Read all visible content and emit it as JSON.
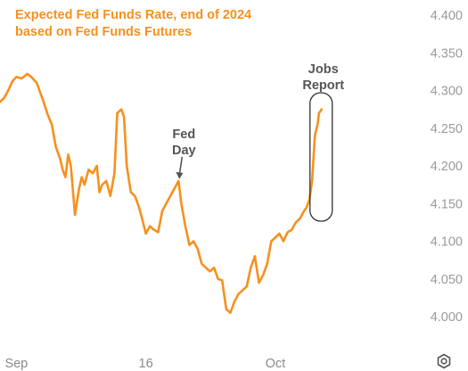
{
  "chart_data": {
    "type": "line",
    "title": "Expected Fed Funds Rate, end of 2024",
    "subtitle": "based on Fed Funds Futures",
    "ylim": [
      3.97,
      4.41
    ],
    "yticks": [
      "4.400",
      "4.350",
      "4.300",
      "4.250",
      "4.200",
      "4.150",
      "4.100",
      "4.050",
      "4.000"
    ],
    "xlim": [
      0,
      29.3
    ],
    "xticks": [
      {
        "x": 1.2,
        "label": "Sep"
      },
      {
        "x": 10.7,
        "label": "16"
      },
      {
        "x": 20.2,
        "label": "Oct"
      }
    ],
    "grid": false,
    "series": [
      {
        "color": "#f7901e",
        "points": [
          [
            0.0,
            4.285
          ],
          [
            0.3,
            4.29
          ],
          [
            0.6,
            4.3
          ],
          [
            0.9,
            4.312
          ],
          [
            1.2,
            4.318
          ],
          [
            1.6,
            4.316
          ],
          [
            2.0,
            4.322
          ],
          [
            2.3,
            4.318
          ],
          [
            2.7,
            4.31
          ],
          [
            2.9,
            4.3
          ],
          [
            3.2,
            4.285
          ],
          [
            3.5,
            4.268
          ],
          [
            3.8,
            4.255
          ],
          [
            4.1,
            4.225
          ],
          [
            4.4,
            4.21
          ],
          [
            4.6,
            4.195
          ],
          [
            4.8,
            4.185
          ],
          [
            5.0,
            4.215
          ],
          [
            5.2,
            4.2
          ],
          [
            5.5,
            4.135
          ],
          [
            5.8,
            4.17
          ],
          [
            6.0,
            4.185
          ],
          [
            6.2,
            4.175
          ],
          [
            6.5,
            4.195
          ],
          [
            6.8,
            4.19
          ],
          [
            7.1,
            4.2
          ],
          [
            7.3,
            4.165
          ],
          [
            7.5,
            4.175
          ],
          [
            7.8,
            4.18
          ],
          [
            8.1,
            4.16
          ],
          [
            8.4,
            4.19
          ],
          [
            8.6,
            4.27
          ],
          [
            8.9,
            4.275
          ],
          [
            9.1,
            4.265
          ],
          [
            9.3,
            4.2
          ],
          [
            9.6,
            4.165
          ],
          [
            9.9,
            4.16
          ],
          [
            10.2,
            4.145
          ],
          [
            10.5,
            4.125
          ],
          [
            10.7,
            4.11
          ],
          [
            11.0,
            4.12
          ],
          [
            11.3,
            4.115
          ],
          [
            11.6,
            4.112
          ],
          [
            11.9,
            4.14
          ],
          [
            12.2,
            4.15
          ],
          [
            12.5,
            4.16
          ],
          [
            12.8,
            4.17
          ],
          [
            13.1,
            4.18
          ],
          [
            13.3,
            4.15
          ],
          [
            13.6,
            4.12
          ],
          [
            13.9,
            4.095
          ],
          [
            14.2,
            4.1
          ],
          [
            14.5,
            4.09
          ],
          [
            14.8,
            4.07
          ],
          [
            15.1,
            4.065
          ],
          [
            15.4,
            4.06
          ],
          [
            15.7,
            4.065
          ],
          [
            16.0,
            4.05
          ],
          [
            16.3,
            4.048
          ],
          [
            16.6,
            4.01
          ],
          [
            16.9,
            4.005
          ],
          [
            17.2,
            4.02
          ],
          [
            17.5,
            4.03
          ],
          [
            17.8,
            4.035
          ],
          [
            18.1,
            4.04
          ],
          [
            18.4,
            4.065
          ],
          [
            18.7,
            4.08
          ],
          [
            19.0,
            4.045
          ],
          [
            19.3,
            4.055
          ],
          [
            19.6,
            4.07
          ],
          [
            19.9,
            4.1
          ],
          [
            20.2,
            4.105
          ],
          [
            20.5,
            4.11
          ],
          [
            20.8,
            4.1
          ],
          [
            21.1,
            4.112
          ],
          [
            21.4,
            4.115
          ],
          [
            21.7,
            4.125
          ],
          [
            22.0,
            4.13
          ],
          [
            22.3,
            4.14
          ],
          [
            22.5,
            4.145
          ],
          [
            22.7,
            4.155
          ],
          [
            22.9,
            4.18
          ],
          [
            23.0,
            4.21
          ],
          [
            23.1,
            4.24
          ],
          [
            23.3,
            4.255
          ],
          [
            23.4,
            4.27
          ],
          [
            23.6,
            4.275
          ]
        ]
      }
    ],
    "annotations": [
      {
        "lines": [
          "Fed",
          "Day"
        ],
        "x": 13.1,
        "y": 4.18
      },
      {
        "lines": [
          "Jobs",
          "Report"
        ],
        "x": 23.2,
        "y": 4.21
      }
    ]
  },
  "ui": {
    "settings_icon": "settings-gear-icon"
  }
}
